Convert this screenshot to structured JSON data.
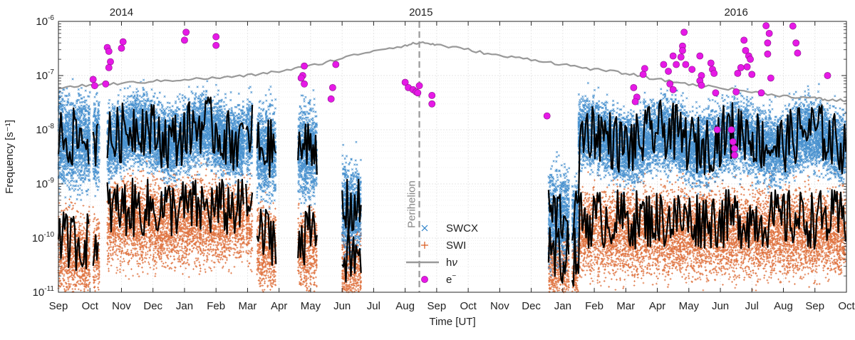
{
  "chart_data": {
    "type": "scatter",
    "title": "",
    "xlabel": "Time [UT]",
    "ylabel": "Frequency [s⁻¹]",
    "yscale": "log",
    "ylim": [
      1e-11,
      1e-06
    ],
    "xlim_months": [
      0,
      25
    ],
    "grid": true,
    "legend_position": "center",
    "years": [
      {
        "label": "2014",
        "month_index": 2
      },
      {
        "label": "2015",
        "month_index": 11.5
      },
      {
        "label": "2016",
        "month_index": 21.5
      }
    ],
    "x_ticks": [
      "Sep",
      "Oct",
      "Nov",
      "Dec",
      "Jan",
      "Feb",
      "Mar",
      "Apr",
      "May",
      "Jun",
      "Jul",
      "Aug",
      "Sep",
      "Oct",
      "Nov",
      "Dec",
      "Jan",
      "Feb",
      "Mar",
      "Apr",
      "May",
      "Jun",
      "Jul",
      "Aug",
      "Sep",
      "Oct"
    ],
    "y_ticks": [
      {
        "exp": -11,
        "label": "10",
        "sup": "-11"
      },
      {
        "exp": -10,
        "label": "10",
        "sup": "-10"
      },
      {
        "exp": -9,
        "label": "10",
        "sup": "-9"
      },
      {
        "exp": -8,
        "label": "10",
        "sup": "-8"
      },
      {
        "exp": -7,
        "label": "10",
        "sup": "-7"
      },
      {
        "exp": -6,
        "label": "10",
        "sup": "-6"
      }
    ],
    "perihelion": {
      "label": "Perihelion",
      "month": 11.45
    },
    "series": [
      {
        "name": "SWCX",
        "legend": "SWCX",
        "marker": "x",
        "color": "#2a7fc7"
      },
      {
        "name": "SWI",
        "legend": "SWI",
        "marker": "+",
        "color": "#d95a1e"
      },
      {
        "name": "hν",
        "legend_main": "h",
        "legend_greek": "ν",
        "marker": "line",
        "color": "#999999"
      },
      {
        "name": "e⁻",
        "legend_main": "e",
        "legend_sup": "−",
        "marker": "circle",
        "color": "#e619e6"
      }
    ],
    "hnu_line": [
      {
        "x": 0.0,
        "y": 6e-08
      },
      {
        "x": 1.0,
        "y": 6.6e-08
      },
      {
        "x": 2.0,
        "y": 7.2e-08
      },
      {
        "x": 3.0,
        "y": 7.8e-08
      },
      {
        "x": 4.0,
        "y": 8.5e-08
      },
      {
        "x": 5.0,
        "y": 9e-08
      },
      {
        "x": 6.0,
        "y": 1e-07
      },
      {
        "x": 7.0,
        "y": 1.2e-07
      },
      {
        "x": 8.0,
        "y": 1.5e-07
      },
      {
        "x": 9.0,
        "y": 2.1e-07
      },
      {
        "x": 10.0,
        "y": 2.9e-07
      },
      {
        "x": 11.0,
        "y": 3.6e-07
      },
      {
        "x": 11.5,
        "y": 4.1e-07
      },
      {
        "x": 12.0,
        "y": 3.7e-07
      },
      {
        "x": 13.0,
        "y": 3e-07
      },
      {
        "x": 14.0,
        "y": 2.3e-07
      },
      {
        "x": 15.0,
        "y": 2e-07
      },
      {
        "x": 16.0,
        "y": 1.6e-07
      },
      {
        "x": 17.0,
        "y": 1.3e-07
      },
      {
        "x": 18.0,
        "y": 1.1e-07
      },
      {
        "x": 19.0,
        "y": 8.5e-08
      },
      {
        "x": 20.0,
        "y": 7e-08
      },
      {
        "x": 21.0,
        "y": 6e-08
      },
      {
        "x": 22.0,
        "y": 5e-08
      },
      {
        "x": 23.0,
        "y": 4.2e-08
      },
      {
        "x": 24.0,
        "y": 3.8e-08
      },
      {
        "x": 24.5,
        "y": 3.5e-08
      },
      {
        "x": 25.0,
        "y": 3.5e-08
      }
    ],
    "electron_points": [
      {
        "x": 1.55,
        "y": 3.3e-07
      },
      {
        "x": 1.6,
        "y": 2.8e-07
      },
      {
        "x": 1.65,
        "y": 1.8e-07
      },
      {
        "x": 1.6,
        "y": 1.4e-07
      },
      {
        "x": 1.1,
        "y": 8.5e-08
      },
      {
        "x": 1.15,
        "y": 6.5e-08
      },
      {
        "x": 1.5,
        "y": 7e-08
      },
      {
        "x": 2.05,
        "y": 4.2e-07
      },
      {
        "x": 2.0,
        "y": 3.2e-07
      },
      {
        "x": 4.05,
        "y": 6.3e-07
      },
      {
        "x": 4.0,
        "y": 4.5e-07
      },
      {
        "x": 5.0,
        "y": 5.2e-07
      },
      {
        "x": 5.0,
        "y": 3.6e-07
      },
      {
        "x": 7.8,
        "y": 1.5e-07
      },
      {
        "x": 7.75,
        "y": 1e-07
      },
      {
        "x": 7.7,
        "y": 9e-08
      },
      {
        "x": 7.8,
        "y": 7e-08
      },
      {
        "x": 8.8,
        "y": 1.6e-07
      },
      {
        "x": 8.7,
        "y": 6e-08
      },
      {
        "x": 8.65,
        "y": 3.7e-08
      },
      {
        "x": 11.0,
        "y": 7.5e-08
      },
      {
        "x": 11.1,
        "y": 6e-08
      },
      {
        "x": 11.25,
        "y": 5.5e-08
      },
      {
        "x": 11.35,
        "y": 5e-08
      },
      {
        "x": 11.45,
        "y": 6.5e-08
      },
      {
        "x": 11.4,
        "y": 4.8e-08
      },
      {
        "x": 11.85,
        "y": 4.3e-08
      },
      {
        "x": 11.85,
        "y": 3e-08
      },
      {
        "x": 15.5,
        "y": 1.8e-08
      },
      {
        "x": 18.25,
        "y": 6e-08
      },
      {
        "x": 18.35,
        "y": 4e-08
      },
      {
        "x": 18.3,
        "y": 3.3e-08
      },
      {
        "x": 18.6,
        "y": 1.35e-07
      },
      {
        "x": 18.55,
        "y": 1.05e-07
      },
      {
        "x": 19.2,
        "y": 1.6e-07
      },
      {
        "x": 19.35,
        "y": 1.2e-07
      },
      {
        "x": 19.4,
        "y": 7e-08
      },
      {
        "x": 19.5,
        "y": 5.5e-08
      },
      {
        "x": 19.5,
        "y": 2.3e-07
      },
      {
        "x": 19.6,
        "y": 1.6e-07
      },
      {
        "x": 19.85,
        "y": 6.3e-07
      },
      {
        "x": 19.8,
        "y": 3.5e-07
      },
      {
        "x": 19.8,
        "y": 2.9e-07
      },
      {
        "x": 19.75,
        "y": 2.2e-07
      },
      {
        "x": 19.9,
        "y": 1.6e-07
      },
      {
        "x": 20.1,
        "y": 1.3e-07
      },
      {
        "x": 20.35,
        "y": 2.3e-07
      },
      {
        "x": 20.4,
        "y": 1e-07
      },
      {
        "x": 20.35,
        "y": 8e-08
      },
      {
        "x": 20.4,
        "y": 6.6e-08
      },
      {
        "x": 20.7,
        "y": 1.7e-07
      },
      {
        "x": 20.75,
        "y": 1.3e-07
      },
      {
        "x": 20.8,
        "y": 1.1e-07
      },
      {
        "x": 20.85,
        "y": 4.8e-08
      },
      {
        "x": 20.9,
        "y": 1e-08
      },
      {
        "x": 21.35,
        "y": 1e-08
      },
      {
        "x": 21.4,
        "y": 6e-09
      },
      {
        "x": 21.45,
        "y": 4.5e-09
      },
      {
        "x": 21.45,
        "y": 3.4e-09
      },
      {
        "x": 21.5,
        "y": 5e-08
      },
      {
        "x": 21.55,
        "y": 1.1e-07
      },
      {
        "x": 21.65,
        "y": 1.4e-07
      },
      {
        "x": 21.75,
        "y": 4.5e-07
      },
      {
        "x": 21.8,
        "y": 2.9e-07
      },
      {
        "x": 21.9,
        "y": 2.3e-07
      },
      {
        "x": 21.95,
        "y": 2e-07
      },
      {
        "x": 21.85,
        "y": 1.45e-07
      },
      {
        "x": 22.0,
        "y": 1.05e-07
      },
      {
        "x": 22.3,
        "y": 4.8e-08
      },
      {
        "x": 22.45,
        "y": 8.3e-07
      },
      {
        "x": 22.55,
        "y": 6e-07
      },
      {
        "x": 22.5,
        "y": 4e-07
      },
      {
        "x": 22.5,
        "y": 2.5e-07
      },
      {
        "x": 22.6,
        "y": 9e-08
      },
      {
        "x": 23.3,
        "y": 8.2e-07
      },
      {
        "x": 23.4,
        "y": 4e-07
      },
      {
        "x": 23.45,
        "y": 2.6e-07
      },
      {
        "x": 24.4,
        "y": 1e-07
      }
    ]
  }
}
